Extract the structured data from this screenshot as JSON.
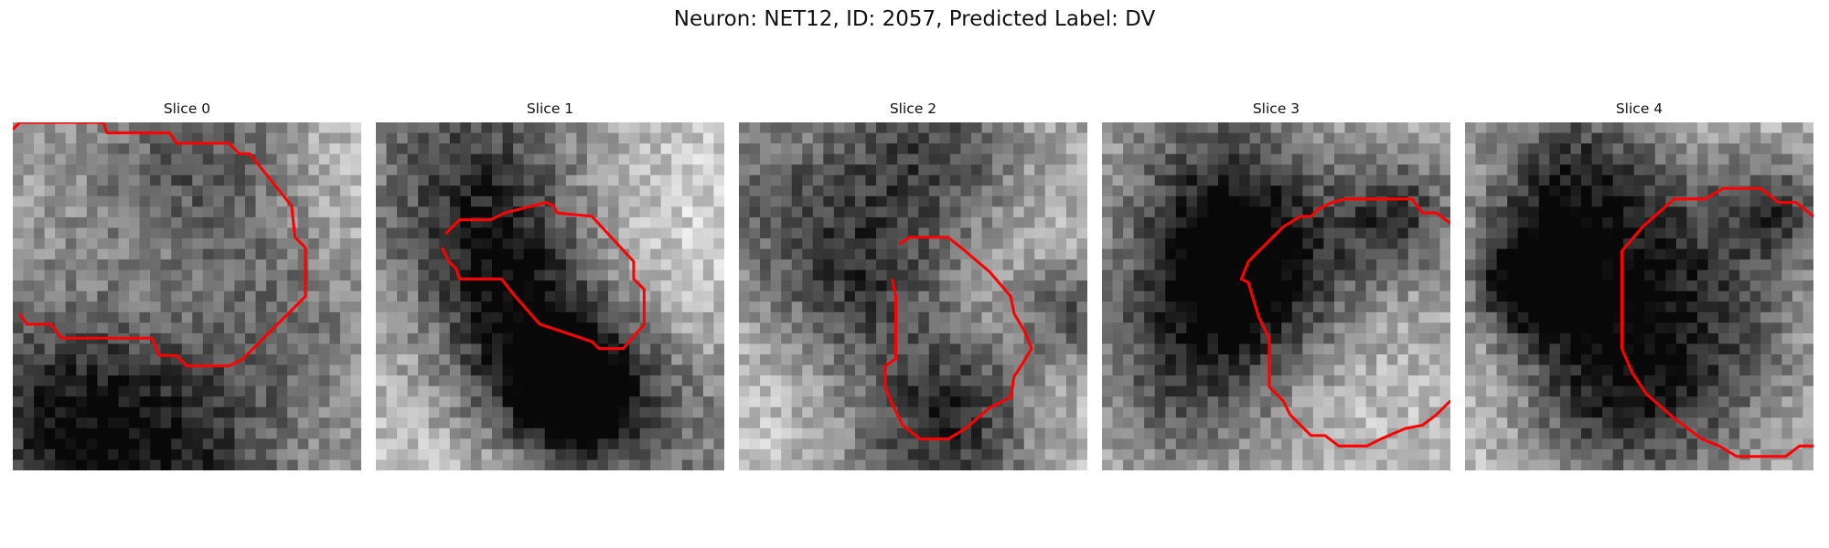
{
  "figure": {
    "title": "Neuron: NET12, ID: 2057, Predicted Label: DV",
    "panels": [
      {
        "title": "Slice 0",
        "seed": 11,
        "blobs": [
          [
            0.55,
            0.12,
            0.22,
            0.45
          ],
          [
            0.1,
            0.88,
            0.25,
            0.55
          ],
          [
            0.8,
            0.55,
            0.2,
            0.3
          ],
          [
            0.45,
            0.95,
            0.25,
            0.45
          ]
        ],
        "contour": [
          [
            0.0,
            0.02
          ],
          [
            0.02,
            0.0
          ],
          [
            0.26,
            0.0
          ],
          [
            0.27,
            0.03
          ],
          [
            0.45,
            0.03
          ],
          [
            0.47,
            0.06
          ],
          [
            0.62,
            0.06
          ],
          [
            0.65,
            0.09
          ],
          [
            0.68,
            0.09
          ],
          [
            0.8,
            0.24
          ],
          [
            0.81,
            0.33
          ],
          [
            0.84,
            0.36
          ],
          [
            0.84,
            0.5
          ],
          [
            0.7,
            0.64
          ],
          [
            0.66,
            0.68
          ],
          [
            0.62,
            0.7
          ],
          [
            0.5,
            0.7
          ],
          [
            0.47,
            0.67
          ],
          [
            0.42,
            0.67
          ],
          [
            0.4,
            0.62
          ],
          [
            0.14,
            0.62
          ],
          [
            0.11,
            0.58
          ],
          [
            0.04,
            0.58
          ],
          [
            0.02,
            0.55
          ]
        ]
      },
      {
        "title": "Slice 1",
        "seed": 23,
        "blobs": [
          [
            0.5,
            0.7,
            0.18,
            0.8
          ],
          [
            0.6,
            0.8,
            0.1,
            0.55
          ],
          [
            0.35,
            0.4,
            0.15,
            0.35
          ],
          [
            0.3,
            0.1,
            0.25,
            0.4
          ],
          [
            0.85,
            0.85,
            0.2,
            0.25
          ]
        ],
        "contour": [
          [
            0.2,
            0.32
          ],
          [
            0.23,
            0.29
          ],
          [
            0.24,
            0.28
          ],
          [
            0.33,
            0.28
          ],
          [
            0.37,
            0.26
          ],
          [
            0.49,
            0.23
          ],
          [
            0.51,
            0.24
          ],
          [
            0.52,
            0.26
          ],
          [
            0.62,
            0.27
          ],
          [
            0.74,
            0.4
          ],
          [
            0.74,
            0.45
          ],
          [
            0.77,
            0.48
          ],
          [
            0.77,
            0.58
          ],
          [
            0.71,
            0.65
          ],
          [
            0.64,
            0.65
          ],
          [
            0.62,
            0.63
          ],
          [
            0.53,
            0.6
          ],
          [
            0.47,
            0.58
          ],
          [
            0.4,
            0.5
          ],
          [
            0.36,
            0.45
          ],
          [
            0.31,
            0.45
          ],
          [
            0.24,
            0.45
          ],
          [
            0.23,
            0.42
          ],
          [
            0.21,
            0.4
          ],
          [
            0.19,
            0.36
          ]
        ]
      },
      {
        "title": "Slice 2",
        "seed": 37,
        "blobs": [
          [
            0.55,
            0.08,
            0.2,
            0.55
          ],
          [
            0.35,
            0.45,
            0.18,
            0.45
          ],
          [
            0.6,
            0.85,
            0.18,
            0.5
          ],
          [
            0.95,
            0.55,
            0.1,
            0.4
          ],
          [
            0.1,
            0.2,
            0.2,
            0.25
          ]
        ],
        "contour": [
          [
            0.46,
            0.35
          ],
          [
            0.49,
            0.33
          ],
          [
            0.6,
            0.33
          ],
          [
            0.65,
            0.37
          ],
          [
            0.72,
            0.43
          ],
          [
            0.78,
            0.5
          ],
          [
            0.79,
            0.55
          ],
          [
            0.82,
            0.6
          ],
          [
            0.84,
            0.65
          ],
          [
            0.81,
            0.7
          ],
          [
            0.79,
            0.73
          ],
          [
            0.78,
            0.79
          ],
          [
            0.72,
            0.82
          ],
          [
            0.65,
            0.88
          ],
          [
            0.6,
            0.91
          ],
          [
            0.52,
            0.91
          ],
          [
            0.47,
            0.87
          ],
          [
            0.44,
            0.81
          ],
          [
            0.42,
            0.76
          ],
          [
            0.42,
            0.7
          ],
          [
            0.45,
            0.68
          ],
          [
            0.45,
            0.5
          ],
          [
            0.44,
            0.45
          ]
        ]
      },
      {
        "title": "Slice 3",
        "seed": 53,
        "blobs": [
          [
            0.35,
            0.45,
            0.18,
            0.6
          ],
          [
            0.25,
            0.75,
            0.2,
            0.4
          ],
          [
            0.85,
            0.25,
            0.12,
            0.45
          ],
          [
            0.55,
            0.4,
            0.2,
            0.4
          ],
          [
            0.3,
            0.15,
            0.2,
            0.35
          ]
        ],
        "contour": [
          [
            0.42,
            0.4
          ],
          [
            0.45,
            0.37
          ],
          [
            0.52,
            0.3
          ],
          [
            0.57,
            0.27
          ],
          [
            0.6,
            0.27
          ],
          [
            0.62,
            0.25
          ],
          [
            0.66,
            0.23
          ],
          [
            0.7,
            0.22
          ],
          [
            0.89,
            0.22
          ],
          [
            0.92,
            0.26
          ],
          [
            0.96,
            0.26
          ],
          [
            1.0,
            0.29
          ],
          [
            0.96,
            0.26
          ],
          [
            0.92,
            0.26
          ],
          [
            0.89,
            0.22
          ],
          [
            0.7,
            0.22
          ],
          [
            0.66,
            0.23
          ],
          [
            0.62,
            0.25
          ],
          [
            0.6,
            0.27
          ],
          [
            0.57,
            0.27
          ],
          [
            0.52,
            0.3
          ],
          [
            0.45,
            0.37
          ],
          [
            0.42,
            0.4
          ],
          [
            0.4,
            0.45
          ],
          [
            0.42,
            0.46
          ],
          [
            0.45,
            0.56
          ],
          [
            0.48,
            0.62
          ],
          [
            0.48,
            0.76
          ],
          [
            0.52,
            0.8
          ],
          [
            0.54,
            0.84
          ],
          [
            0.6,
            0.9
          ],
          [
            0.64,
            0.9
          ],
          [
            0.68,
            0.93
          ],
          [
            0.76,
            0.93
          ],
          [
            0.8,
            0.91
          ],
          [
            0.87,
            0.88
          ],
          [
            0.92,
            0.87
          ],
          [
            0.96,
            0.84
          ],
          [
            1.0,
            0.8
          ]
        ]
      },
      {
        "title": "Slice 4",
        "seed": 71,
        "blobs": [
          [
            0.2,
            0.45,
            0.12,
            0.7
          ],
          [
            0.5,
            0.45,
            0.3,
            0.55
          ],
          [
            0.9,
            0.25,
            0.1,
            0.35
          ],
          [
            0.3,
            0.15,
            0.15,
            0.35
          ],
          [
            0.45,
            0.8,
            0.2,
            0.35
          ]
        ],
        "contour": [
          [
            0.45,
            0.37
          ],
          [
            0.51,
            0.3
          ],
          [
            0.6,
            0.22
          ],
          [
            0.69,
            0.22
          ],
          [
            0.74,
            0.19
          ],
          [
            0.85,
            0.19
          ],
          [
            0.9,
            0.23
          ],
          [
            0.95,
            0.23
          ],
          [
            1.0,
            0.27
          ],
          [
            0.95,
            0.23
          ],
          [
            0.9,
            0.23
          ],
          [
            0.85,
            0.19
          ],
          [
            0.74,
            0.19
          ],
          [
            0.69,
            0.22
          ],
          [
            0.6,
            0.22
          ],
          [
            0.51,
            0.3
          ],
          [
            0.45,
            0.37
          ],
          [
            0.45,
            0.65
          ],
          [
            0.48,
            0.72
          ],
          [
            0.52,
            0.78
          ],
          [
            0.6,
            0.85
          ],
          [
            0.68,
            0.91
          ],
          [
            0.73,
            0.93
          ],
          [
            0.78,
            0.96
          ],
          [
            0.92,
            0.96
          ],
          [
            0.96,
            0.93
          ],
          [
            1.0,
            0.93
          ]
        ]
      }
    ]
  }
}
